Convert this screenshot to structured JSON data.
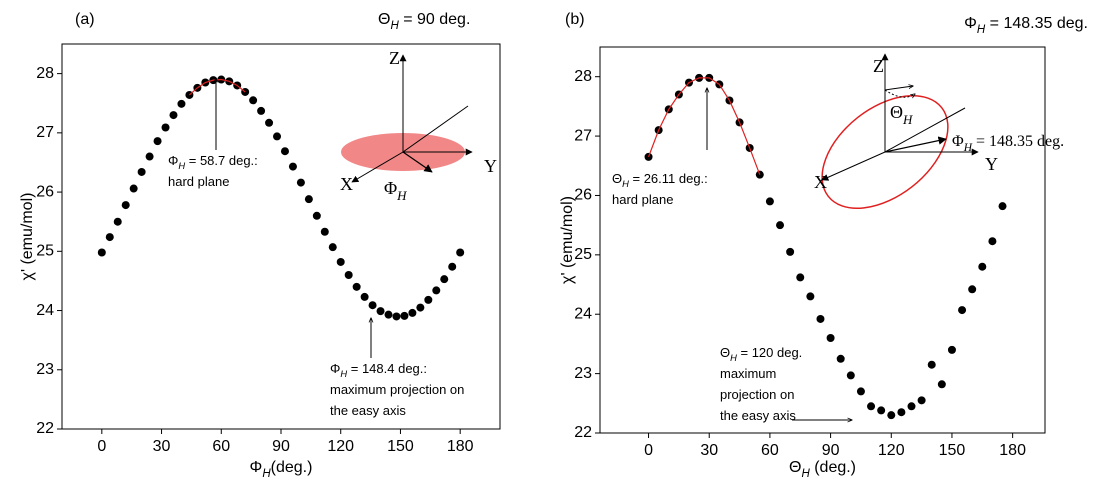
{
  "chart_data": [
    {
      "type": "scatter",
      "label": "(a)",
      "title": [
        "Θ",
        "H",
        " = 90 deg."
      ],
      "xlabel": [
        "Φ",
        "H",
        "(deg.)"
      ],
      "ylabel": "χ' (emu/mol)",
      "xlim": [
        -20,
        200
      ],
      "ylim": [
        22,
        28.5
      ],
      "xticks": [
        0,
        30,
        60,
        90,
        120,
        150,
        180
      ],
      "yticks": [
        22,
        23,
        24,
        25,
        26,
        27,
        28
      ],
      "series": [
        {
          "color": "#000000",
          "kind": "points",
          "x": [
            0,
            4,
            8,
            12,
            16,
            20,
            24,
            28,
            32,
            36,
            40,
            44,
            48,
            52,
            56,
            60,
            64,
            68,
            72,
            76,
            80,
            84,
            88,
            92,
            96,
            100,
            104,
            108,
            112,
            116,
            120,
            124,
            128,
            132,
            136,
            140,
            144,
            148,
            152,
            156,
            160,
            164,
            168,
            172,
            176,
            180
          ],
          "values": [
            24.98,
            25.24,
            25.5,
            25.78,
            26.06,
            26.34,
            26.6,
            26.86,
            27.09,
            27.3,
            27.49,
            27.64,
            27.76,
            27.85,
            27.89,
            27.9,
            27.87,
            27.8,
            27.69,
            27.55,
            27.37,
            27.17,
            26.94,
            26.69,
            26.43,
            26.16,
            25.88,
            25.6,
            25.33,
            25.07,
            24.82,
            24.6,
            24.4,
            24.23,
            24.09,
            23.99,
            23.93,
            23.9,
            23.91,
            23.96,
            24.05,
            24.18,
            24.34,
            24.53,
            24.74,
            24.98
          ]
        },
        {
          "color": "#e02020",
          "kind": "line",
          "x": [
            44,
            48,
            52,
            56,
            60,
            64,
            68,
            72
          ],
          "values": [
            27.64,
            27.76,
            27.85,
            27.89,
            27.9,
            27.87,
            27.8,
            27.69
          ]
        }
      ],
      "annotations": [
        [
          [
            "Φ",
            "H",
            " = 58.7 deg.:"
          ],
          [
            "hard plane"
          ]
        ],
        [
          [
            "Φ",
            "H",
            " = 148.4 deg.:"
          ],
          [
            "maximum projection on"
          ],
          [
            "the easy axis"
          ]
        ]
      ],
      "inset": {
        "z": "Z",
        "y": "Y",
        "x": "X",
        "angle": [
          "Φ",
          "H"
        ]
      }
    },
    {
      "type": "scatter",
      "label": "(b)",
      "title": [
        "Φ",
        "H",
        " = 148.35 deg."
      ],
      "xlabel": [
        "Θ",
        "H",
        " (deg.)"
      ],
      "ylabel": "χ' (emu/mol)",
      "xlim": [
        -24,
        196
      ],
      "ylim": [
        22,
        28.5
      ],
      "xticks": [
        0,
        30,
        60,
        90,
        120,
        150,
        180
      ],
      "yticks": [
        22,
        23,
        24,
        25,
        26,
        27,
        28
      ],
      "series": [
        {
          "color": "#000000",
          "kind": "points",
          "x": [
            0,
            5,
            10,
            15,
            20,
            25,
            30,
            35,
            40,
            45,
            50,
            55,
            60,
            65,
            70,
            75,
            80,
            85,
            90,
            95,
            100,
            105,
            110,
            115,
            120,
            125,
            130,
            135,
            140,
            145,
            150,
            155,
            160,
            165,
            170,
            175
          ],
          "values": [
            26.65,
            27.1,
            27.45,
            27.7,
            27.9,
            27.98,
            27.98,
            27.87,
            27.6,
            27.23,
            26.8,
            26.35,
            25.9,
            25.5,
            25.05,
            24.62,
            24.3,
            23.92,
            23.6,
            23.25,
            22.97,
            22.7,
            22.45,
            22.38,
            22.3,
            22.35,
            22.45,
            22.55,
            23.15,
            22.82,
            23.4,
            24.07,
            24.42,
            24.8,
            25.23,
            25.82
          ]
        },
        {
          "color": "#e02020",
          "kind": "line",
          "x": [
            0,
            5,
            10,
            15,
            20,
            25,
            30,
            35,
            40,
            45,
            50,
            55
          ],
          "values": [
            26.65,
            27.1,
            27.45,
            27.7,
            27.9,
            27.98,
            27.98,
            27.87,
            27.6,
            27.23,
            26.8,
            26.35
          ]
        }
      ],
      "annotations": [
        [
          [
            "Θ",
            "H",
            " = 26.11 deg.:"
          ],
          [
            "hard plane"
          ]
        ],
        [
          [
            "Θ",
            "H",
            " = 120 deg."
          ],
          [
            "maximum"
          ],
          [
            "projection on"
          ],
          [
            "the easy axis"
          ]
        ]
      ],
      "inset": {
        "z": "Z",
        "y": "Y",
        "x": "X",
        "angle": [
          "Θ",
          "H"
        ],
        "field": [
          "Φ",
          "H",
          " = 148.35 deg."
        ]
      }
    }
  ]
}
